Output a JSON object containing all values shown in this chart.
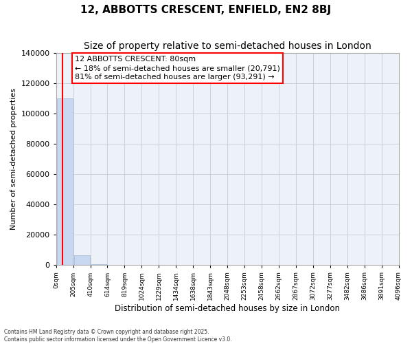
{
  "title1": "12, ABBOTTS CRESCENT, ENFIELD, EN2 8BJ",
  "title2": "Size of property relative to semi-detached houses in London",
  "xlabel": "Distribution of semi-detached houses by size in London",
  "ylabel": "Number of semi-detached properties",
  "property_size": 80,
  "annotation_title": "12 ABBOTTS CRESCENT: 80sqm",
  "annotation_line1": "← 18% of semi-detached houses are smaller (20,791)",
  "annotation_line2": "81% of semi-detached houses are larger (93,291) →",
  "bar_color": "#c8d8f0",
  "bar_edge_color": "#a0b8d8",
  "bins": [
    0,
    205,
    410,
    614,
    819,
    1024,
    1229,
    1434,
    1638,
    1843,
    2048,
    2253,
    2458,
    2662,
    2867,
    3072,
    3277,
    3482,
    3686,
    3891,
    4096
  ],
  "bin_labels": [
    "0sqm",
    "205sqm",
    "410sqm",
    "614sqm",
    "819sqm",
    "1024sqm",
    "1229sqm",
    "1434sqm",
    "1638sqm",
    "1843sqm",
    "2048sqm",
    "2253sqm",
    "2458sqm",
    "2662sqm",
    "2867sqm",
    "3072sqm",
    "3277sqm",
    "3482sqm",
    "3686sqm",
    "3891sqm",
    "4096sqm"
  ],
  "counts": [
    110000,
    6500,
    800,
    200,
    80,
    40,
    20,
    12,
    8,
    6,
    4,
    3,
    3,
    2,
    2,
    1,
    1,
    1,
    1,
    1
  ],
  "ylim": [
    0,
    140000
  ],
  "yticks": [
    0,
    20000,
    40000,
    60000,
    80000,
    100000,
    120000,
    140000
  ],
  "footer": "Contains HM Land Registry data © Crown copyright and database right 2025.\nContains public sector information licensed under the Open Government Licence v3.0.",
  "fig_bg": "#ffffff",
  "plot_bg": "#edf2f9",
  "grid_color": "#c8d0dc",
  "title_fontsize": 11,
  "subtitle_fontsize": 10,
  "annotation_fontsize": 8
}
